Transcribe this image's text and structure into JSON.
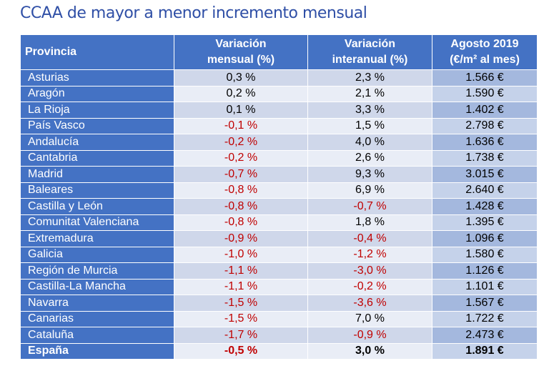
{
  "title": "CCAA de mayor a menor incremento mensual",
  "headers": {
    "provincia": "Provincia",
    "mensual_1": "Variación",
    "mensual_2": "mensual (%)",
    "interanual_1": "Variación",
    "interanual_2": "interanual (%)",
    "precio_1": "Agosto 2019",
    "precio_2": "(€/m² al mes)"
  },
  "rows": [
    {
      "name": "Asturias",
      "mensual": "0,3 %",
      "interanual": "2,3 %",
      "precio": "1.566 €"
    },
    {
      "name": "Aragón",
      "mensual": "0,2 %",
      "interanual": "2,1 %",
      "precio": "1.590 €"
    },
    {
      "name": "La Rioja",
      "mensual": "0,1 %",
      "interanual": "3,3 %",
      "precio": "1.402 €"
    },
    {
      "name": "País Vasco",
      "mensual": "-0,1 %",
      "interanual": "1,5 %",
      "precio": "2.798 €"
    },
    {
      "name": "Andalucía",
      "mensual": "-0,2 %",
      "interanual": "4,0 %",
      "precio": "1.636 €"
    },
    {
      "name": "Cantabria",
      "mensual": "-0,2 %",
      "interanual": "2,6 %",
      "precio": "1.738 €"
    },
    {
      "name": "Madrid",
      "mensual": "-0,7 %",
      "interanual": "9,3 %",
      "precio": "3.015 €"
    },
    {
      "name": "Baleares",
      "mensual": "-0,8 %",
      "interanual": "6,9 %",
      "precio": "2.640 €"
    },
    {
      "name": "Castilla y León",
      "mensual": "-0,8 %",
      "interanual": "-0,7 %",
      "precio": "1.428 €"
    },
    {
      "name": "Comunitat Valenciana",
      "mensual": "-0,8 %",
      "interanual": "1,8 %",
      "precio": "1.395 €"
    },
    {
      "name": "Extremadura",
      "mensual": "-0,9 %",
      "interanual": "-0,4 %",
      "precio": "1.096 €"
    },
    {
      "name": "Galicia",
      "mensual": "-1,0 %",
      "interanual": "-1,2 %",
      "precio": "1.580 €"
    },
    {
      "name": "Región de Murcia",
      "mensual": "-1,1 %",
      "interanual": "-3,0 %",
      "precio": "1.126 €"
    },
    {
      "name": "Castilla-La Mancha",
      "mensual": "-1,1 %",
      "interanual": "-0,2 %",
      "precio": "1.101 €"
    },
    {
      "name": "Navarra",
      "mensual": "-1,5 %",
      "interanual": "-3,6 %",
      "precio": "1.567 €"
    },
    {
      "name": "Canarias",
      "mensual": "-1,5 %",
      "interanual": "7,0 %",
      "precio": "1.722 €"
    },
    {
      "name": "Cataluña",
      "mensual": "-1,7 %",
      "interanual": "-0,9 %",
      "precio": "2.473 €"
    }
  ],
  "total": {
    "name": "España",
    "mensual": "-0,5 %",
    "interanual": "3,0 %",
    "precio": "1.891 €"
  },
  "colors": {
    "header_bg": "#4472c4",
    "title": "#2f4fa6",
    "negative": "#c00000"
  }
}
